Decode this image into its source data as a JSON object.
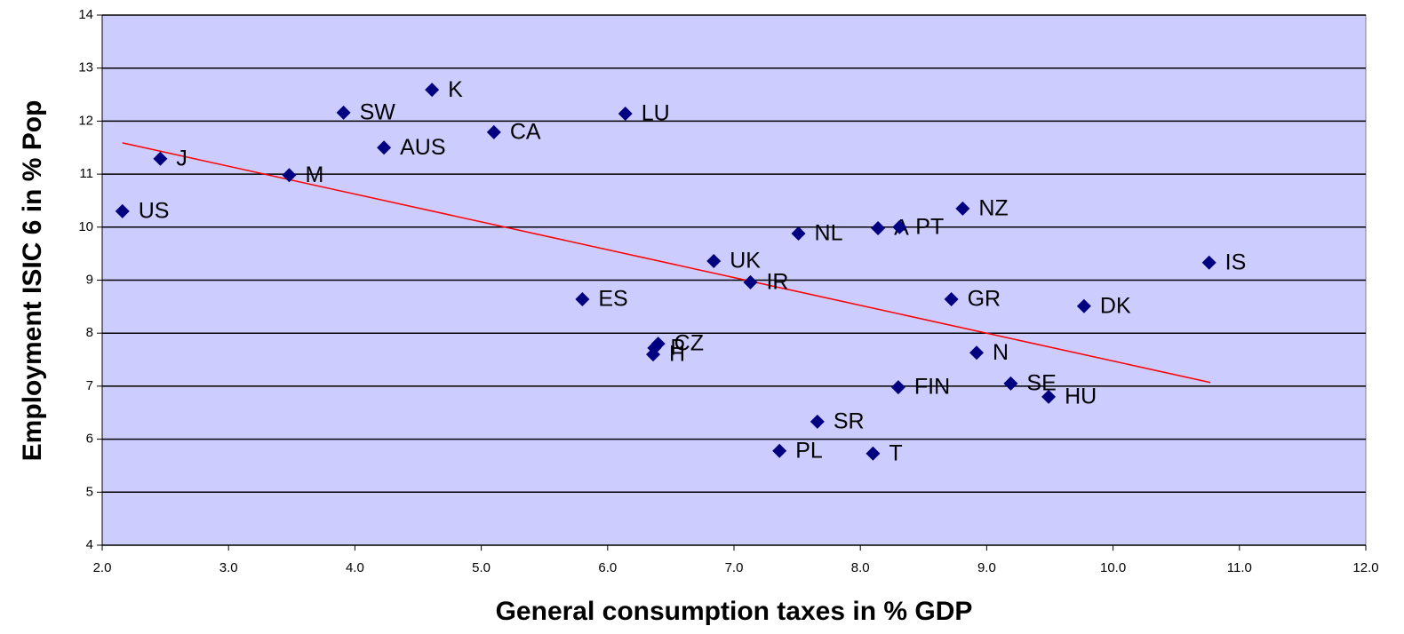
{
  "chart_data": {
    "type": "scatter",
    "x_label": "General consumption taxes in % GDP",
    "y_label": "Employment ISIC 6 in % Pop",
    "labels": [
      "US",
      "J",
      "M",
      "SW",
      "AUS",
      "K",
      "CA",
      "LU",
      "ES",
      "UK",
      "IR",
      "CZ",
      "P",
      "H",
      "NL",
      "A",
      "PT",
      "NZ",
      "GR",
      "DK",
      "IS",
      "N",
      "SE",
      "HU",
      "FIN",
      "SR",
      "PL",
      "T"
    ],
    "x": [
      2.16,
      2.46,
      3.48,
      3.91,
      4.23,
      4.61,
      5.1,
      6.14,
      5.8,
      6.84,
      7.13,
      6.4,
      6.37,
      6.36,
      7.51,
      8.14,
      8.31,
      8.81,
      8.72,
      9.77,
      10.76,
      8.92,
      9.19,
      9.49,
      8.3,
      7.66,
      7.36,
      8.1
    ],
    "y": [
      10.3,
      11.29,
      10.98,
      12.16,
      11.5,
      12.59,
      11.79,
      12.14,
      8.64,
      9.36,
      8.96,
      7.8,
      7.72,
      7.6,
      9.88,
      9.98,
      10.0,
      10.35,
      8.64,
      8.51,
      9.33,
      7.63,
      7.05,
      6.8,
      6.98,
      6.33,
      5.78,
      5.73
    ],
    "color": "#000080",
    "trendline": {
      "x": [
        2.16,
        10.77
      ],
      "y": [
        11.59,
        7.07
      ],
      "color": "#ff0000"
    },
    "xlim": [
      2.0,
      12.0
    ],
    "xticks": [
      {
        "value": 2,
        "label": "2.0"
      },
      {
        "value": 3,
        "label": "3.0"
      },
      {
        "value": 4,
        "label": "4.0"
      },
      {
        "value": 5,
        "label": "5.0"
      },
      {
        "value": 6,
        "label": "6.0"
      },
      {
        "value": 7,
        "label": "7.0"
      },
      {
        "value": 8,
        "label": "8.0"
      },
      {
        "value": 9,
        "label": "9.0"
      },
      {
        "value": 10,
        "label": "10.0"
      },
      {
        "value": 11,
        "label": "11.0"
      },
      {
        "value": 12,
        "label": "12.0"
      }
    ],
    "ylim": [
      4,
      14
    ],
    "yticks": [
      4,
      5,
      6,
      7,
      8,
      9,
      10,
      11,
      12,
      13,
      14
    ],
    "grid": true,
    "background": "#ccccff"
  }
}
